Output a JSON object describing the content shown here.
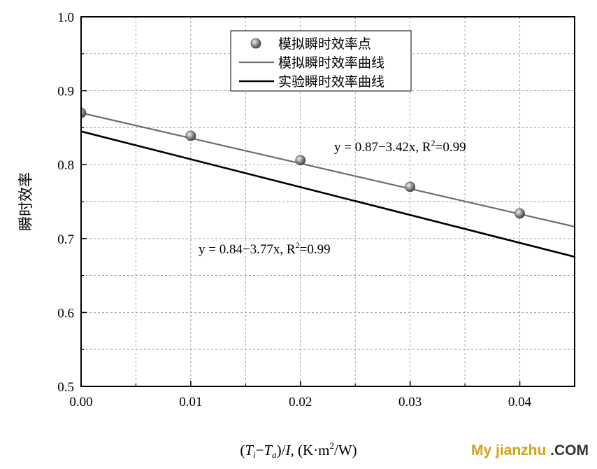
{
  "chart_data": {
    "type": "line",
    "xlabel_parts": [
      "(",
      "T",
      "i",
      "−",
      "T",
      "a",
      ")/",
      "I",
      ", (K·m",
      "2",
      "/W)"
    ],
    "ylabel": "瞬时效率",
    "xlim": [
      0,
      0.045
    ],
    "ylim": [
      0.5,
      1.0
    ],
    "x_ticks": [
      "0.00",
      "0.01",
      "0.02",
      "0.03",
      "0.04"
    ],
    "y_ticks": [
      "0.5",
      "0.6",
      "0.7",
      "0.8",
      "0.9",
      "1.0"
    ],
    "grid": true,
    "legend_position": "top-center",
    "series": [
      {
        "name": "模拟瞬时效率点",
        "kind": "scatter",
        "color": "#777777",
        "x": [
          0.0,
          0.01,
          0.02,
          0.03,
          0.04
        ],
        "y": [
          0.87,
          0.839,
          0.806,
          0.77,
          0.734
        ]
      },
      {
        "name": "模拟瞬时效率曲线",
        "kind": "line",
        "color": "#6e6e6e",
        "intercept": 0.87,
        "slope": -3.42
      },
      {
        "name": "实验瞬时效率曲线",
        "kind": "line",
        "color": "#000000",
        "intercept": 0.845,
        "slope": -3.77
      }
    ],
    "annotations": [
      {
        "id": "sim",
        "pre": "y = 0.87−3.42x, R",
        "sup": "2",
        "post": "=0.99"
      },
      {
        "id": "exp",
        "pre": "y = 0.84−3.77x, R",
        "sup": "2",
        "post": "=0.99"
      }
    ]
  },
  "watermark": {
    "main": "My jianzhu",
    "suffix": ".COM"
  }
}
